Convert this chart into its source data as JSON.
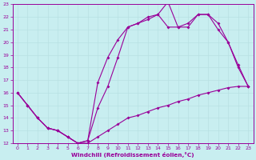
{
  "bg_color": "#c8eef0",
  "line_color": "#990099",
  "grid_color": "#b8e0e2",
  "xlabel": "Windchill (Refroidissement éolien,°C)",
  "xlim": [
    -0.5,
    23.5
  ],
  "ylim": [
    12,
    23
  ],
  "xticks": [
    0,
    1,
    2,
    3,
    4,
    5,
    6,
    7,
    8,
    9,
    10,
    11,
    12,
    13,
    14,
    15,
    16,
    17,
    18,
    19,
    20,
    21,
    22,
    23
  ],
  "yticks": [
    12,
    13,
    14,
    15,
    16,
    17,
    18,
    19,
    20,
    21,
    22,
    23
  ],
  "line1_x": [
    0,
    1,
    2,
    3,
    4,
    5,
    6,
    7,
    8,
    9,
    10,
    11,
    12,
    13,
    14,
    15,
    16,
    17,
    18,
    19,
    20,
    21,
    22,
    23
  ],
  "line1_y": [
    16.0,
    15.0,
    14.0,
    13.2,
    13.0,
    12.5,
    12.0,
    12.0,
    12.5,
    13.0,
    13.5,
    14.0,
    14.2,
    14.5,
    14.8,
    15.0,
    15.3,
    15.5,
    15.8,
    16.0,
    16.2,
    16.4,
    16.5,
    16.5
  ],
  "line2_x": [
    0,
    1,
    2,
    3,
    4,
    5,
    6,
    7,
    8,
    9,
    10,
    11,
    12,
    13,
    14,
    15,
    16,
    17,
    18,
    19,
    20,
    21,
    22,
    23
  ],
  "line2_y": [
    16.0,
    15.0,
    14.0,
    13.2,
    13.0,
    12.5,
    12.0,
    12.2,
    14.8,
    16.5,
    18.8,
    21.2,
    21.5,
    21.8,
    22.2,
    21.2,
    21.2,
    21.2,
    22.2,
    22.2,
    21.0,
    20.0,
    18.0,
    16.5
  ],
  "line3_x": [
    0,
    1,
    2,
    3,
    4,
    5,
    6,
    7,
    8,
    9,
    10,
    11,
    12,
    13,
    14,
    15,
    16,
    17,
    18,
    19,
    20,
    21,
    22,
    23
  ],
  "line3_y": [
    16.0,
    15.0,
    14.0,
    13.2,
    13.0,
    12.5,
    12.0,
    12.2,
    16.8,
    18.8,
    20.2,
    21.2,
    21.5,
    22.0,
    22.2,
    23.2,
    21.2,
    21.5,
    22.2,
    22.2,
    21.5,
    20.0,
    18.2,
    16.5
  ]
}
